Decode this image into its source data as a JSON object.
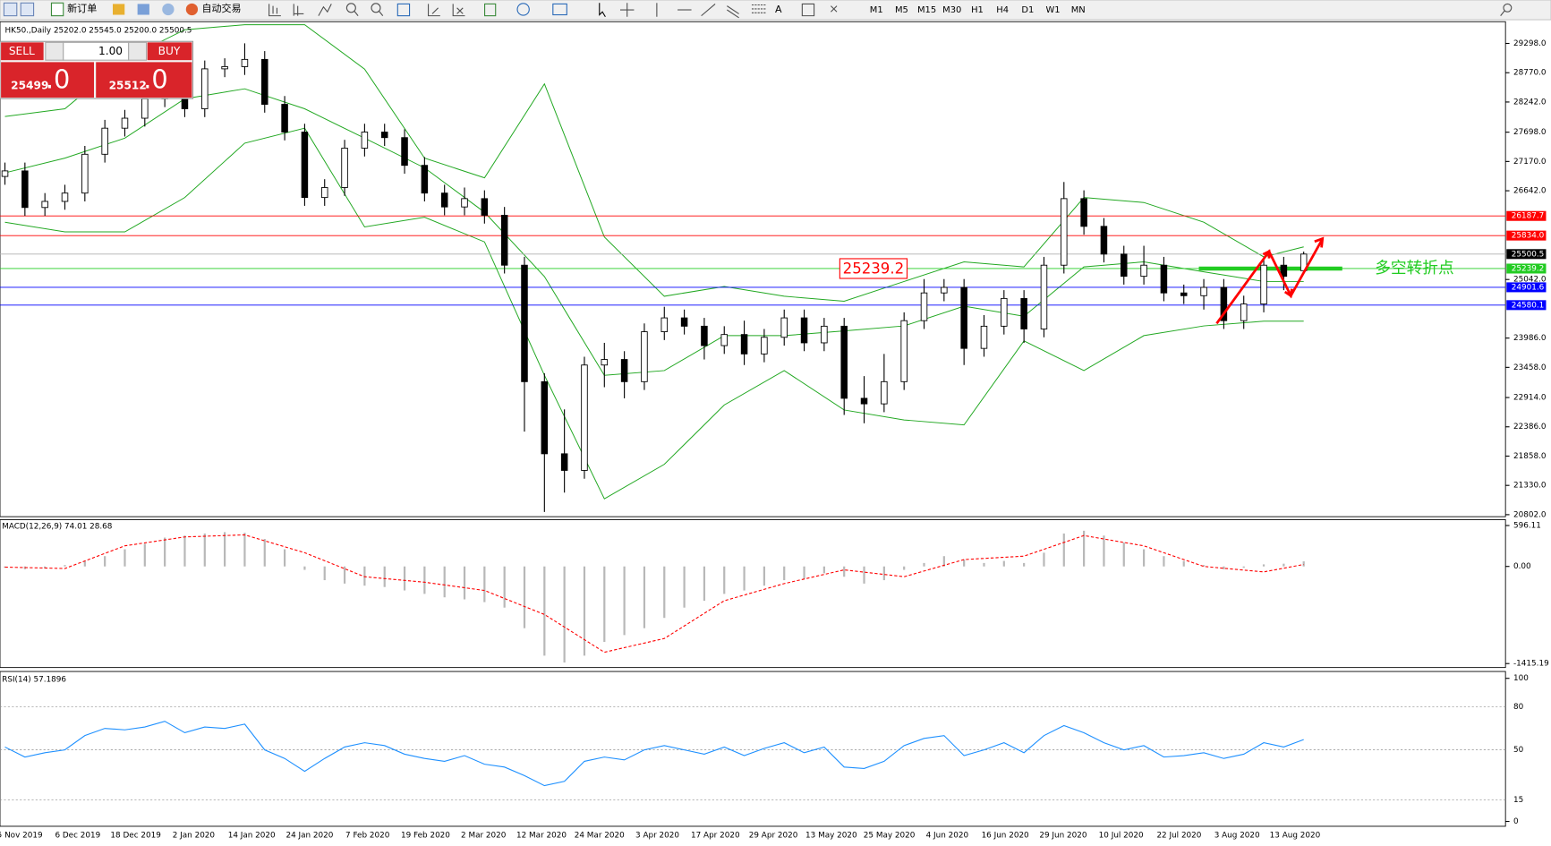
{
  "toolbar": {
    "new_order": "新订单",
    "auto_trading": "自动交易",
    "timeframes": [
      "M1",
      "M5",
      "M15",
      "M30",
      "H1",
      "H4",
      "D1",
      "W1",
      "MN"
    ]
  },
  "trade_panel": {
    "sell": "SELL",
    "buy": "BUY",
    "lot": "1.00",
    "sell_main": "25499",
    "sell_frac": ".0",
    "buy_main": "25512",
    "buy_frac": ".0"
  },
  "chart": {
    "symbol_info": "HK50.,Daily  25202.0 25545.0 25200.0 25500.5",
    "ylim": [
      20766,
      29690
    ],
    "yticks": [
      {
        "value": 29298,
        "label": "29298.0"
      },
      {
        "value": 28770,
        "label": "28770.0"
      },
      {
        "value": 28242,
        "label": "28242.0"
      },
      {
        "value": 27698,
        "label": "27698.0"
      },
      {
        "value": 27170,
        "label": "27170.0"
      },
      {
        "value": 26642,
        "label": "26642.0"
      },
      {
        "value": 25042,
        "label": "25042.0"
      },
      {
        "value": 23986,
        "label": "23986.0"
      },
      {
        "value": 23458,
        "label": "23458.0"
      },
      {
        "value": 22914,
        "label": "22914.0"
      },
      {
        "value": 22386,
        "label": "22386.0"
      },
      {
        "value": 21858,
        "label": "21858.0"
      },
      {
        "value": 21330,
        "label": "21330.0"
      },
      {
        "value": 20802,
        "label": "20802.0"
      }
    ],
    "dates": [
      "5 Nov 2019",
      "6 Dec 2019",
      "18 Dec 2019",
      "2 Jan 2020",
      "14 Jan 2020",
      "24 Jan 2020",
      "7 Feb 2020",
      "19 Feb 2020",
      "2 Mar 2020",
      "12 Mar 2020",
      "24 Mar 2020",
      "3 Apr 2020",
      "17 Apr 2020",
      "29 Apr 2020",
      "13 May 2020",
      "25 May 2020",
      "4 Jun 2020",
      "16 Jun 2020",
      "29 Jun 2020",
      "10 Jul 2020",
      "22 Jul 2020",
      "3 Aug 2020",
      "13 Aug 2020"
    ],
    "candles": {
      "open": [
        26900,
        27000,
        26340,
        26450,
        26600,
        27300,
        27770,
        27950,
        28300,
        28390,
        28120,
        28840,
        28880,
        29010,
        28200,
        27700,
        26520,
        26700,
        27410,
        27700,
        27600,
        27100,
        26600,
        26350,
        26500,
        26200,
        25300,
        23200,
        21900,
        21600,
        23500,
        23600,
        23200,
        24100,
        24350,
        24200,
        23850,
        24050,
        23700,
        24000,
        24350,
        23900,
        24200,
        22900,
        22800,
        23200,
        24300,
        24800,
        24900,
        23800,
        24200,
        24700,
        24150,
        25300,
        26500,
        26000,
        25500,
        25100,
        25300,
        24800,
        24750,
        24900,
        24300,
        24600,
        25300,
        25202
      ],
      "high": [
        27150,
        27150,
        26600,
        26750,
        27450,
        27920,
        28100,
        28450,
        28540,
        28540,
        28990,
        29030,
        29300,
        29160,
        28350,
        27850,
        26850,
        27560,
        27850,
        27850,
        27750,
        27250,
        26750,
        26700,
        26650,
        26350,
        25450,
        23350,
        22700,
        23650,
        23900,
        23750,
        24250,
        24550,
        24500,
        24350,
        24200,
        24300,
        24150,
        24500,
        24500,
        24350,
        24350,
        23300,
        23700,
        24450,
        25050,
        25050,
        25050,
        24400,
        24850,
        24850,
        25450,
        26800,
        26650,
        26150,
        25650,
        25650,
        25450,
        24950,
        25050,
        25050,
        24750,
        25450,
        25450,
        25545
      ],
      "low": [
        26750,
        26190,
        26190,
        26300,
        26450,
        27150,
        27620,
        27800,
        28150,
        27970,
        27970,
        28690,
        28730,
        28050,
        27550,
        26370,
        26370,
        26550,
        27260,
        27450,
        26950,
        26450,
        26200,
        26200,
        26050,
        25150,
        22300,
        20850,
        21200,
        21450,
        23100,
        22900,
        23050,
        23950,
        24050,
        23600,
        23700,
        23500,
        23550,
        23850,
        23750,
        23750,
        22600,
        22450,
        22650,
        23050,
        24150,
        24650,
        23500,
        23650,
        24050,
        23900,
        24000,
        25150,
        25850,
        25350,
        24950,
        24950,
        24650,
        24600,
        24500,
        24150,
        24150,
        24450,
        24850,
        25200
      ],
      "close": [
        27000,
        26340,
        26450,
        26600,
        27300,
        27770,
        27950,
        28300,
        28390,
        28120,
        28840,
        28880,
        29010,
        28200,
        27700,
        26520,
        26700,
        27410,
        27700,
        27600,
        27100,
        26600,
        26350,
        26500,
        26200,
        25300,
        23200,
        21900,
        21600,
        23500,
        23600,
        23200,
        24100,
        24350,
        24200,
        23850,
        24050,
        23700,
        24000,
        24350,
        23900,
        24200,
        22900,
        22800,
        23200,
        24300,
        24800,
        24900,
        23800,
        24200,
        24700,
        24150,
        25300,
        26500,
        26000,
        25500,
        25100,
        25300,
        24800,
        24750,
        24900,
        24300,
        24600,
        25300,
        25100,
        25500.5
      ]
    },
    "bands": {
      "x": [
        0,
        3,
        6,
        9,
        12,
        15,
        18,
        21,
        24,
        27,
        30,
        33,
        36,
        39,
        42,
        45,
        48,
        51,
        54,
        57,
        60,
        63,
        65
      ],
      "upper": [
        27980,
        28120,
        29010,
        29545,
        29636,
        29636,
        28835,
        27230,
        26875,
        28568,
        25808,
        24740,
        24917,
        24740,
        24650,
        25006,
        25360,
        25270,
        26520,
        26430,
        26075,
        25450,
        25630
      ],
      "middle": [
        26965,
        27230,
        27590,
        28300,
        28480,
        28120,
        27590,
        27055,
        26255,
        25095,
        23315,
        23400,
        24030,
        24030,
        24115,
        24205,
        24560,
        24380,
        25270,
        25360,
        25180,
        25006,
        25006
      ],
      "lower": [
        26075,
        25900,
        25900,
        26520,
        27500,
        27770,
        25990,
        26164,
        25720,
        23315,
        21088,
        21710,
        22780,
        23400,
        22690,
        22510,
        22420,
        23935,
        23400,
        24030,
        24205,
        24290,
        24290
      ]
    },
    "levels": [
      {
        "value": 26187.7,
        "color": "#ff0000"
      },
      {
        "value": 25834.0,
        "label": "25834.0",
        "color": "#ff0000"
      },
      {
        "value": 25500.5,
        "color": "#000000"
      },
      {
        "value": 25239.2,
        "color": "#22cc22"
      },
      {
        "value": 24901.6,
        "color": "#0000ff"
      },
      {
        "value": 24580.1,
        "color": "#0000ff"
      }
    ],
    "pivot_text": "多空转折点"
  },
  "macd": {
    "title": "MACD(12,26,9) 74.01 28.68",
    "ylim": [
      -1473,
      682
    ],
    "yticks": [
      596.11,
      {
        "value": 0,
        "label": "0.00"
      },
      -1415.19
    ],
    "histogram": [
      -20,
      -40,
      -30,
      20,
      80,
      150,
      250,
      330,
      420,
      450,
      480,
      500,
      490,
      400,
      250,
      -50,
      -200,
      -250,
      -280,
      -300,
      -350,
      -400,
      -450,
      -480,
      -520,
      -600,
      -900,
      -1300,
      -1400,
      -1300,
      -1100,
      -1000,
      -900,
      -750,
      -600,
      -500,
      -400,
      -350,
      -280,
      -200,
      -180,
      -100,
      -150,
      -250,
      -200,
      -50,
      50,
      150,
      100,
      50,
      80,
      50,
      200,
      480,
      520,
      450,
      350,
      250,
      150,
      80,
      20,
      -40,
      -20,
      30,
      40,
      74.01
    ],
    "signal": {
      "x": [
        0,
        3,
        6,
        9,
        12,
        15,
        18,
        21,
        24,
        27,
        30,
        33,
        36,
        39,
        42,
        45,
        48,
        51,
        54,
        57,
        60,
        63,
        65
      ],
      "values": [
        -10,
        -30,
        300,
        430,
        460,
        200,
        -150,
        -230,
        -350,
        -700,
        -1250,
        -1050,
        -500,
        -250,
        -50,
        -150,
        100,
        150,
        450,
        300,
        0,
        -80,
        28.68
      ]
    }
  },
  "rsi": {
    "title": "RSI(14) 57.1896",
    "ylim": [
      -3.4,
      104.8
    ],
    "yticks": [
      100,
      80,
      50,
      15,
      0
    ],
    "values": [
      52,
      45,
      48,
      50,
      60,
      65,
      64,
      66,
      70,
      62,
      66,
      65,
      68,
      50,
      44,
      35,
      44,
      52,
      55,
      53,
      47,
      44,
      42,
      46,
      40,
      38,
      32,
      25,
      28,
      42,
      45,
      43,
      50,
      53,
      50,
      47,
      52,
      46,
      51,
      55,
      48,
      52,
      38,
      37,
      42,
      53,
      58,
      60,
      46,
      50,
      55,
      48,
      60,
      67,
      62,
      55,
      50,
      53,
      45,
      46,
      48,
      44,
      47,
      55,
      52,
      57.1896
    ]
  }
}
